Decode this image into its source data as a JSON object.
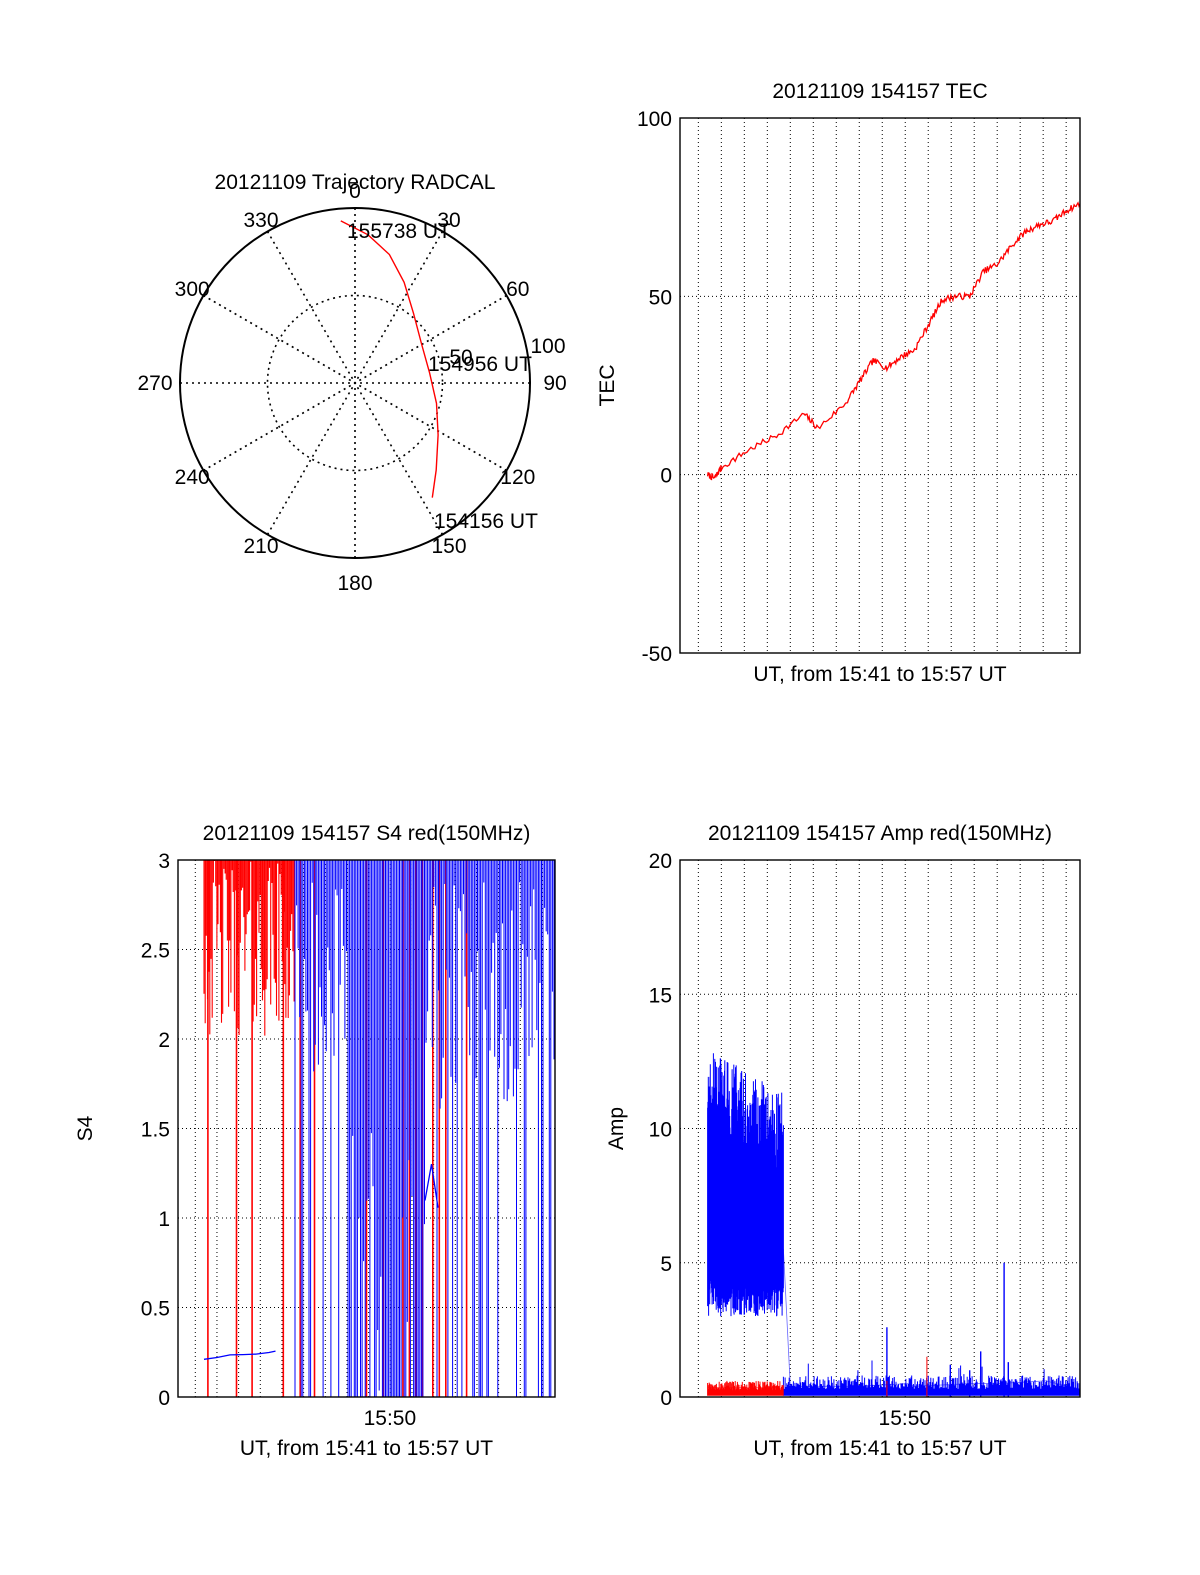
{
  "chart_data": [
    {
      "type": "polar",
      "title": "20121109 Trajectory RADCAL",
      "azimuth_labels": [
        "0",
        "30",
        "60",
        "90",
        "120",
        "150",
        "180",
        "210",
        "240",
        "270",
        "300",
        "330"
      ],
      "radial_labels": [
        "50",
        "100"
      ],
      "rmax": 100,
      "series": [
        {
          "color": "#ff0000",
          "points": [
            {
              "az": -5,
              "r": 93
            },
            {
              "az": 5,
              "r": 85
            },
            {
              "az": 15,
              "r": 76
            },
            {
              "az": 26,
              "r": 64
            },
            {
              "az": 40,
              "r": 52
            },
            {
              "az": 60,
              "r": 44
            },
            {
              "az": 82,
              "r": 43
            },
            {
              "az": 104,
              "r": 48
            },
            {
              "az": 122,
              "r": 56
            },
            {
              "az": 137,
              "r": 68
            },
            {
              "az": 146,
              "r": 79
            }
          ]
        }
      ],
      "annotations": [
        "155738 UT",
        "154956 UT",
        "154156 UT"
      ]
    },
    {
      "type": "line",
      "title": "20121109 154157 TEC",
      "xlabel": "UT, from 15:41 to 15:57 UT",
      "ylabel": "TEC",
      "xlim": [
        15.67,
        15.96
      ],
      "ylim": [
        -50,
        100
      ],
      "yticks": [
        -50,
        0,
        50,
        100
      ],
      "series": [
        {
          "color": "#ff0000",
          "x": [
            15.69,
            15.695,
            15.7,
            15.72,
            15.74,
            15.76,
            15.77,
            15.79,
            15.8,
            15.81,
            15.82,
            15.83,
            15.84,
            15.85,
            15.86,
            15.87,
            15.88,
            15.89,
            15.9,
            15.91,
            15.92,
            15.93,
            15.94,
            15.95,
            15.96
          ],
          "y": [
            0,
            -1,
            2,
            7,
            11,
            17,
            13,
            20,
            26,
            32,
            30,
            33,
            35,
            42,
            49,
            50,
            50,
            57,
            59,
            64,
            68,
            70,
            71,
            74,
            76
          ]
        }
      ]
    },
    {
      "type": "line",
      "title": "20121109 154157 S4 red(150MHz)",
      "xlabel": "UT, from 15:41 to 15:57 UT",
      "ylabel": "S4",
      "xlim": [
        15.67,
        15.96
      ],
      "ylim": [
        0,
        3
      ],
      "yticks": [
        "0",
        "0.5",
        "1",
        "1.5",
        "2",
        "2.5",
        "3"
      ],
      "xticks": [
        {
          "value": 15.833,
          "label": "15:50"
        }
      ],
      "series": [
        {
          "color": "#0000ff",
          "x": [
            15.69,
            15.7,
            15.71,
            15.72,
            15.73,
            15.74,
            15.745
          ],
          "y": [
            0.22,
            0.23,
            0.23,
            0.24,
            0.24,
            0.25,
            0.25
          ]
        },
        {
          "color": "#0000ff",
          "x": [
            15.86,
            15.865,
            15.87
          ],
          "y": [
            1.1,
            1.3,
            1.05
          ]
        }
      ]
    },
    {
      "type": "line",
      "title": "20121109 154157 Amp red(150MHz)",
      "xlabel": "UT, from 15:41 to 15:57 UT",
      "ylabel": "Amp",
      "xlim": [
        15.67,
        15.96
      ],
      "ylim": [
        0,
        20
      ],
      "yticks": [
        0,
        5,
        10,
        15,
        20
      ],
      "xticks": [
        {
          "value": 15.833,
          "label": "15:50"
        }
      ],
      "series": [
        {
          "color": "#0000ff",
          "x": [
            15.69,
            15.7,
            15.71,
            15.72,
            15.73,
            15.74,
            15.745,
            15.75,
            15.8,
            15.835,
            15.84,
            15.88,
            15.9,
            15.935,
            15.96
          ],
          "y": [
            7.5,
            7.0,
            6.8,
            6.6,
            6.2,
            6.0,
            5.5,
            0.4,
            0.4,
            0.5,
            0.4,
            0.5,
            0.5,
            0.6,
            0.3
          ]
        },
        {
          "color": "#ff0000",
          "x": [
            15.69,
            15.74,
            15.745
          ],
          "y": [
            0.35,
            0.35,
            0.3
          ]
        }
      ]
    }
  ]
}
